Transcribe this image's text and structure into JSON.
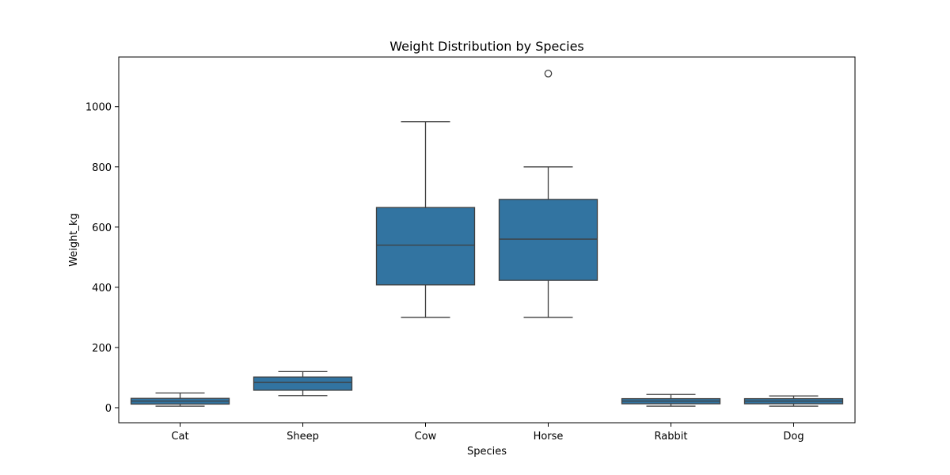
{
  "chart_data": {
    "type": "box",
    "title": "Weight Distribution by Species",
    "xlabel": "Species",
    "ylabel": "Weight_kg",
    "ylim": [
      -50,
      1165
    ],
    "yticks": [
      0,
      200,
      400,
      600,
      800,
      1000
    ],
    "grid": false,
    "box_color": "#3274a1",
    "line_color": "#3f3f3f",
    "categories": [
      "Cat",
      "Sheep",
      "Cow",
      "Horse",
      "Rabbit",
      "Dog"
    ],
    "boxes": [
      {
        "category": "Cat",
        "whisker_low": 5,
        "q1": 12,
        "median": 22,
        "q3": 31,
        "whisker_high": 49,
        "outliers": []
      },
      {
        "category": "Sheep",
        "whisker_low": 40,
        "q1": 58,
        "median": 84,
        "q3": 102,
        "whisker_high": 120,
        "outliers": []
      },
      {
        "category": "Cow",
        "whisker_low": 300,
        "q1": 408,
        "median": 540,
        "q3": 665,
        "whisker_high": 950,
        "outliers": []
      },
      {
        "category": "Horse",
        "whisker_low": 300,
        "q1": 423,
        "median": 560,
        "q3": 692,
        "whisker_high": 800,
        "outliers": [
          1110
        ]
      },
      {
        "category": "Rabbit",
        "whisker_low": 5,
        "q1": 13,
        "median": 22,
        "q3": 30,
        "whisker_high": 44,
        "outliers": []
      },
      {
        "category": "Dog",
        "whisker_low": 5,
        "q1": 13,
        "median": 22,
        "q3": 30,
        "whisker_high": 39,
        "outliers": []
      }
    ]
  }
}
